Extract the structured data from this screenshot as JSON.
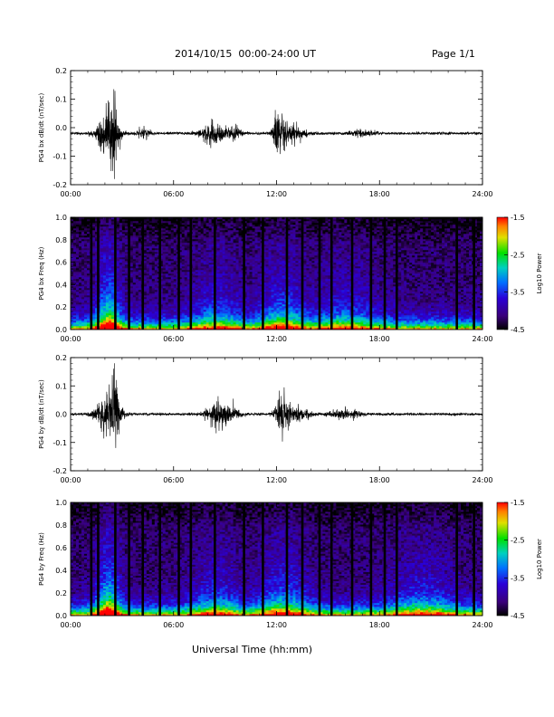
{
  "header": {
    "title": "2014/10/15  00:00-24:00 UT",
    "page": "Page 1/1"
  },
  "footer": {
    "xlabel": "Universal Time (hh:mm)"
  },
  "chart_data": [
    {
      "type": "line",
      "ylabel": "PG4 bx dB/dt (nT/sec)",
      "x_ticks": [
        "00:00",
        "06:00",
        "12:00",
        "18:00",
        "24:00"
      ],
      "xlim_hours": [
        0,
        24
      ],
      "ylim": [
        -0.2,
        0.2
      ],
      "y_ticks": [
        "0.2",
        "0.1",
        "0.0",
        "-0.1",
        "-0.2"
      ],
      "offset": -0.02,
      "bursts": [
        {
          "t": 2.2,
          "amp": 0.17,
          "w": 0.9
        },
        {
          "t": 2.6,
          "amp": 0.2,
          "w": 0.25
        },
        {
          "t": 4.2,
          "amp": 0.03,
          "w": 0.6
        },
        {
          "t": 8.3,
          "amp": 0.07,
          "w": 1.0
        },
        {
          "t": 9.5,
          "amp": 0.05,
          "w": 0.6
        },
        {
          "t": 12.2,
          "amp": 0.17,
          "w": 0.5
        },
        {
          "t": 13.0,
          "amp": 0.05,
          "w": 1.0
        },
        {
          "t": 17.0,
          "amp": 0.02,
          "w": 1.0
        }
      ]
    },
    {
      "type": "heatmap",
      "ylabel": "PG4 bx Freq (Hz)",
      "x_ticks": [
        "00:00",
        "06:00",
        "12:00",
        "18:00",
        "24:00"
      ],
      "xlim_hours": [
        0,
        24
      ],
      "ylim": [
        0,
        1.0
      ],
      "y_ticks": [
        "1.0",
        "0.8",
        "0.6",
        "0.4",
        "0.2",
        "0.0"
      ],
      "colorbar": {
        "label": "Log10 Power",
        "ticks": [
          "-1.5",
          "-2.5",
          "-3.5",
          "-4.5"
        ],
        "range": [
          -4.5,
          -1.5
        ]
      },
      "gap_hours": [
        1.2,
        1.6,
        2.6,
        3.4,
        4.2,
        5.2,
        6.3,
        7.0,
        8.4,
        10.1,
        11.2,
        12.6,
        13.5,
        14.5,
        15.2,
        16.4,
        17.5,
        18.3,
        19.0,
        22.5,
        23.5
      ],
      "activity": [
        {
          "t": 2.2,
          "level": 1.0,
          "w": 0.7
        },
        {
          "t": 8.5,
          "level": 0.45,
          "w": 1.5
        },
        {
          "t": 12.4,
          "level": 0.6,
          "w": 1.5
        },
        {
          "t": 16.0,
          "level": 0.4,
          "w": 2.0
        }
      ]
    },
    {
      "type": "line",
      "ylabel": "PG4 by dB/dt (nT/sec)",
      "x_ticks": [
        "00:00",
        "06:00",
        "12:00",
        "18:00",
        "24:00"
      ],
      "xlim_hours": [
        0,
        24
      ],
      "ylim": [
        -0.2,
        0.2
      ],
      "y_ticks": [
        "0.2",
        "0.1",
        "0.0",
        "-0.1",
        "-0.2"
      ],
      "offset": 0.0,
      "bursts": [
        {
          "t": 2.2,
          "amp": 0.15,
          "w": 0.9
        },
        {
          "t": 2.6,
          "amp": 0.18,
          "w": 0.3
        },
        {
          "t": 8.6,
          "amp": 0.09,
          "w": 0.9
        },
        {
          "t": 9.5,
          "amp": 0.04,
          "w": 0.6
        },
        {
          "t": 12.3,
          "amp": 0.13,
          "w": 0.5
        },
        {
          "t": 13.2,
          "amp": 0.05,
          "w": 1.0
        },
        {
          "t": 16.0,
          "amp": 0.03,
          "w": 1.2
        }
      ]
    },
    {
      "type": "heatmap",
      "ylabel": "PG4 by Freq (Hz)",
      "x_ticks": [
        "00:00",
        "06:00",
        "12:00",
        "18:00",
        "24:00"
      ],
      "xlim_hours": [
        0,
        24
      ],
      "ylim": [
        0,
        1.0
      ],
      "y_ticks": [
        "1.0",
        "0.8",
        "0.6",
        "0.4",
        "0.2",
        "0.0"
      ],
      "colorbar": {
        "label": "Log10 Power",
        "ticks": [
          "-1.5",
          "-2.5",
          "-3.5",
          "-4.5"
        ],
        "range": [
          -4.5,
          -1.5
        ]
      },
      "gap_hours": [
        1.2,
        1.6,
        2.6,
        3.4,
        4.2,
        5.2,
        6.3,
        7.0,
        8.4,
        10.1,
        11.2,
        12.6,
        13.5,
        14.5,
        15.2,
        16.4,
        17.5,
        18.3,
        19.0,
        22.5,
        23.5
      ],
      "activity": [
        {
          "t": 2.2,
          "level": 1.0,
          "w": 0.7
        },
        {
          "t": 8.5,
          "level": 0.45,
          "w": 1.5
        },
        {
          "t": 12.4,
          "level": 0.6,
          "w": 1.5
        },
        {
          "t": 20.5,
          "level": 0.45,
          "w": 2.0
        }
      ]
    }
  ]
}
